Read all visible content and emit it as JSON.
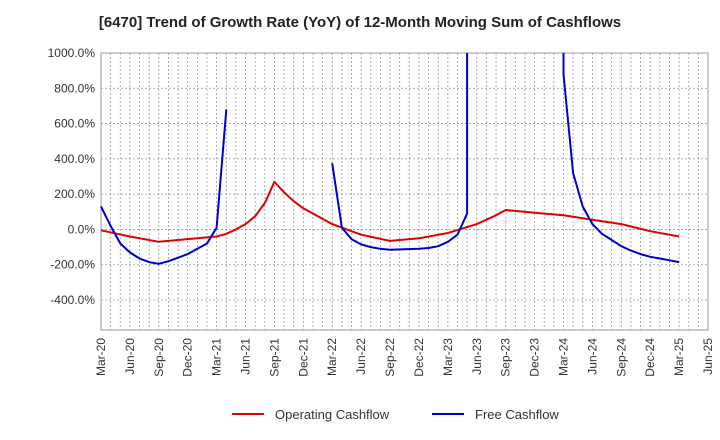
{
  "chart_data": {
    "type": "line",
    "title": "[6470]  Trend of Growth Rate (YoY) of 12-Month Moving Sum of Cashflows",
    "xlabel": "",
    "ylabel": "",
    "ylim": [
      -570,
      1000
    ],
    "yticks": [
      -400,
      -200,
      0,
      200,
      400,
      600,
      800,
      1000
    ],
    "ytick_labels": [
      "-400.0%",
      "-200.0%",
      "0.0%",
      "200.0%",
      "400.0%",
      "600.0%",
      "800.0%",
      "1000.0%"
    ],
    "xticks": [
      "Mar-20",
      "Jun-20",
      "Sep-20",
      "Dec-20",
      "Mar-21",
      "Jun-21",
      "Sep-21",
      "Dec-21",
      "Mar-22",
      "Jun-22",
      "Sep-22",
      "Dec-22",
      "Mar-23",
      "Jun-23",
      "Sep-23",
      "Dec-23",
      "Mar-24",
      "Jun-24",
      "Sep-24",
      "Dec-24",
      "Mar-25",
      "Jun-25"
    ],
    "x_start": "Mar-20",
    "grid": true,
    "legend_position": "bottom",
    "series": [
      {
        "name": "Operating Cashflow",
        "color": "#e00000",
        "points": [
          [
            "Mar-20",
            -5
          ],
          [
            "Jun-20",
            -40
          ],
          [
            "Sep-20",
            -70
          ],
          [
            "Dec-20",
            -55
          ],
          [
            "Mar-21",
            -40
          ],
          [
            "Apr-21",
            -25
          ],
          [
            "May-21",
            0
          ],
          [
            "Jun-21",
            30
          ],
          [
            "Jul-21",
            75
          ],
          [
            "Aug-21",
            150
          ],
          [
            "Sep-21",
            270
          ],
          [
            "Oct-21",
            210
          ],
          [
            "Nov-21",
            160
          ],
          [
            "Dec-21",
            120
          ],
          [
            "Mar-22",
            30
          ],
          [
            "Jun-22",
            -30
          ],
          [
            "Sep-22",
            -65
          ],
          [
            "Dec-22",
            -50
          ],
          [
            "Mar-23",
            -20
          ],
          [
            "Jun-23",
            30
          ],
          [
            "Jul-23",
            55
          ],
          [
            "Aug-23",
            80
          ],
          [
            "Sep-23",
            110
          ],
          [
            "Dec-23",
            95
          ],
          [
            "Mar-24",
            80
          ],
          [
            "Jun-24",
            55
          ],
          [
            "Sep-24",
            30
          ],
          [
            "Dec-24",
            -10
          ],
          [
            "Mar-25",
            -40
          ]
        ]
      },
      {
        "name": "Free Cashflow",
        "color": "#0000cc",
        "segments": [
          [
            [
              "Mar-20",
              130
            ],
            [
              "Apr-20",
              20
            ],
            [
              "May-20",
              -80
            ],
            [
              "Jun-20",
              -130
            ],
            [
              "Jul-20",
              -165
            ],
            [
              "Aug-20",
              -185
            ],
            [
              "Sep-20",
              -195
            ],
            [
              "Oct-20",
              -180
            ],
            [
              "Nov-20",
              -160
            ],
            [
              "Dec-20",
              -140
            ],
            [
              "Jan-21",
              -110
            ],
            [
              "Feb-21",
              -80
            ],
            [
              "Mar-21",
              10
            ],
            [
              "Apr-21",
              680
            ]
          ],
          [
            [
              "Mar-22",
              375
            ],
            [
              "Apr-22",
              10
            ],
            [
              "May-22",
              -55
            ],
            [
              "Jun-22",
              -85
            ],
            [
              "Jul-22",
              -100
            ],
            [
              "Aug-22",
              -110
            ],
            [
              "Sep-22",
              -115
            ],
            [
              "Dec-22",
              -110
            ],
            [
              "Jan-23",
              -105
            ],
            [
              "Feb-23",
              -95
            ],
            [
              "Mar-23",
              -70
            ],
            [
              "Apr-23",
              -30
            ],
            [
              "May-23",
              90
            ],
            [
              "May-23",
              1000
            ]
          ],
          [
            [
              "Mar-24",
              1000
            ],
            [
              "Mar-24",
              880
            ],
            [
              "Apr-24",
              320
            ],
            [
              "May-24",
              130
            ],
            [
              "Jun-24",
              30
            ],
            [
              "Jul-24",
              -25
            ],
            [
              "Aug-24",
              -60
            ],
            [
              "Sep-24",
              -95
            ],
            [
              "Oct-24",
              -120
            ],
            [
              "Nov-24",
              -140
            ],
            [
              "Dec-24",
              -155
            ],
            [
              "Jan-25",
              -165
            ],
            [
              "Feb-25",
              -175
            ],
            [
              "Mar-25",
              -185
            ]
          ]
        ]
      }
    ]
  }
}
